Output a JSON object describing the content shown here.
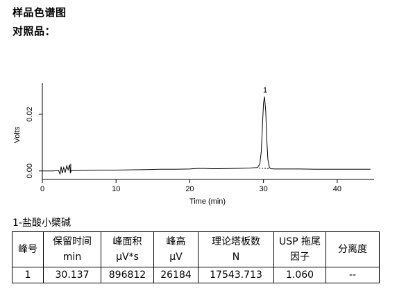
{
  "header": {
    "title": "样品色谱图",
    "subtitle": "对照品："
  },
  "chart_data": {
    "type": "line",
    "xlabel": "Time (min)",
    "ylabel": "Volts",
    "xlim": [
      0,
      45
    ],
    "ylim": [
      -0.003,
      0.031
    ],
    "xticks": [
      0,
      10,
      20,
      30,
      40
    ],
    "xtick_labels": [
      "0",
      "10",
      "20",
      "30",
      "40"
    ],
    "yticks": [
      0.0,
      0.02
    ],
    "ytick_labels": [
      "0.00",
      "0.02"
    ],
    "grid": false,
    "series": [
      {
        "values_x": [
          0,
          1.5,
          2.2,
          2.4,
          2.55,
          2.7,
          2.9,
          3.1,
          3.3,
          3.5,
          3.7,
          3.8,
          3.95,
          4.5,
          6,
          8,
          10,
          12,
          14,
          16,
          18,
          20,
          21,
          22,
          23,
          24,
          26,
          28,
          29.2,
          29.5,
          29.7,
          29.85,
          30.0,
          30.137,
          30.3,
          30.45,
          30.6,
          30.8,
          31.0,
          31.5,
          33,
          35,
          37,
          39,
          41,
          43,
          44.5
        ],
        "values_y": [
          0.0,
          0.0,
          0.0002,
          -0.0012,
          0.0015,
          -0.0008,
          0.0012,
          -0.0006,
          0.0018,
          0.0004,
          0.0022,
          -0.0006,
          0.0001,
          0.0001,
          0.0002,
          0.0003,
          0.0003,
          0.0004,
          0.0005,
          0.0006,
          0.0006,
          0.0007,
          0.0009,
          0.0009,
          0.0008,
          0.0008,
          0.0009,
          0.001,
          0.0012,
          0.0025,
          0.007,
          0.016,
          0.024,
          0.0262,
          0.021,
          0.011,
          0.004,
          0.0012,
          0.0008,
          0.0007,
          0.0007,
          0.0007,
          0.0006,
          0.0006,
          0.0006,
          0.0006,
          0.0006
        ]
      }
    ],
    "peaks": [
      {
        "label": "1",
        "x": 30.137,
        "y": 0.0262
      }
    ]
  },
  "compound_label": "1-盐酸小檗碱",
  "table": {
    "headers": [
      [
        "峰号"
      ],
      [
        "保留时间",
        "min"
      ],
      [
        "峰面积",
        "μV*s"
      ],
      [
        "峰高",
        "μV"
      ],
      [
        "理论塔板数",
        "N"
      ],
      [
        "USP 拖尾",
        "因子"
      ],
      [
        "分离度"
      ]
    ],
    "rows": [
      [
        "1",
        "30.137",
        "896812",
        "26184",
        "17543.713",
        "1.060",
        "--"
      ]
    ]
  }
}
